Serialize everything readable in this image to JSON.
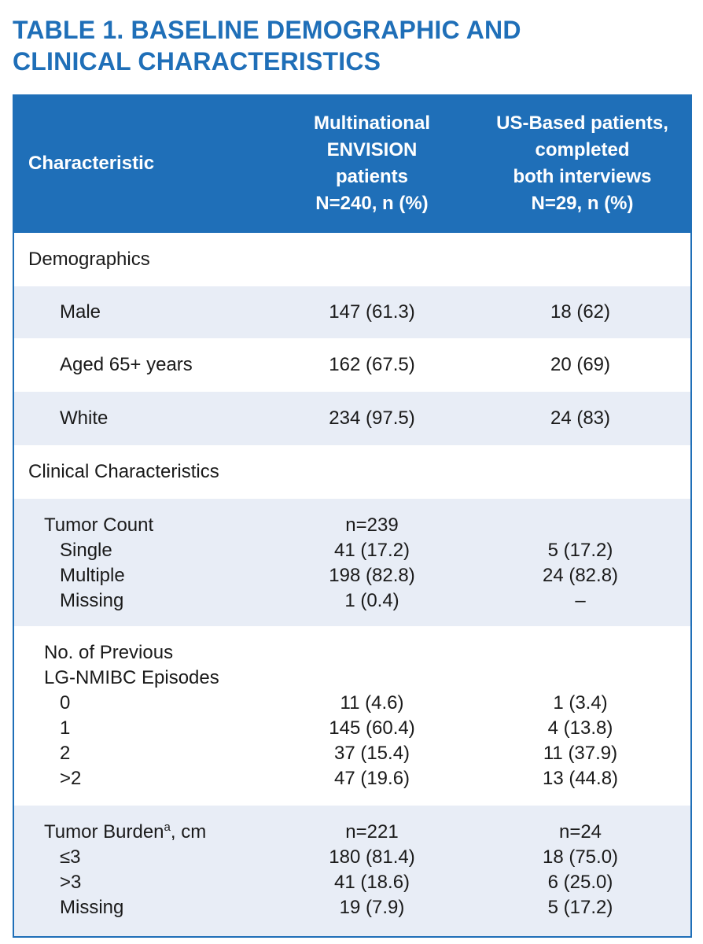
{
  "title": "TABLE 1. BASELINE DEMOGRAPHIC AND\nCLINICAL CHARACTERISTICS",
  "header": {
    "col1": "Characteristic",
    "col2": "Multinational\nENVISION\npatients\nN=240, n (%)",
    "col3": "US-Based patients,\ncompleted\nboth interviews\nN=29, n (%)"
  },
  "rows": {
    "demographics": {
      "label": "Demographics"
    },
    "male": {
      "label": "Male",
      "v1": "147 (61.3)",
      "v2": "18 (62)"
    },
    "aged": {
      "label": "Aged 65+ years",
      "v1": "162 (67.5)",
      "v2": "20 (69)"
    },
    "white": {
      "label": "White",
      "v1": "234 (97.5)",
      "v2": "24 (83)"
    },
    "clinical": {
      "label": "Clinical Characteristics"
    },
    "tumor_count": {
      "label": "Tumor Count",
      "sub_labels": "Single\nMultiple\nMissing",
      "v1": "n=239\n41 (17.2)\n198 (82.8)\n1 (0.4)",
      "v2": "\n5 (17.2)\n24 (82.8)\n–"
    },
    "episodes": {
      "label": "No. of Previous\nLG-NMIBC Episodes",
      "sub_labels": "0\n1\n2\n>2",
      "v1": "11 (4.6)\n145 (60.4)\n37 (15.4)\n47 (19.6)",
      "v2": "1 (3.4)\n4 (13.8)\n11 (37.9)\n13 (44.8)"
    },
    "tumor_burden": {
      "label": "Tumor Burden",
      "label_sup": "a",
      "label_suffix": ", cm",
      "sub_labels": "≤3\n>3\nMissing",
      "v1": "n=221\n180 (81.4)\n41 (18.6)\n19 (7.9)",
      "v2": "n=24\n18 (75.0)\n6 (25.0)\n5 (17.2)"
    }
  },
  "colors": {
    "accent": "#1f6fb8",
    "row_shade": "#e8edf6"
  }
}
